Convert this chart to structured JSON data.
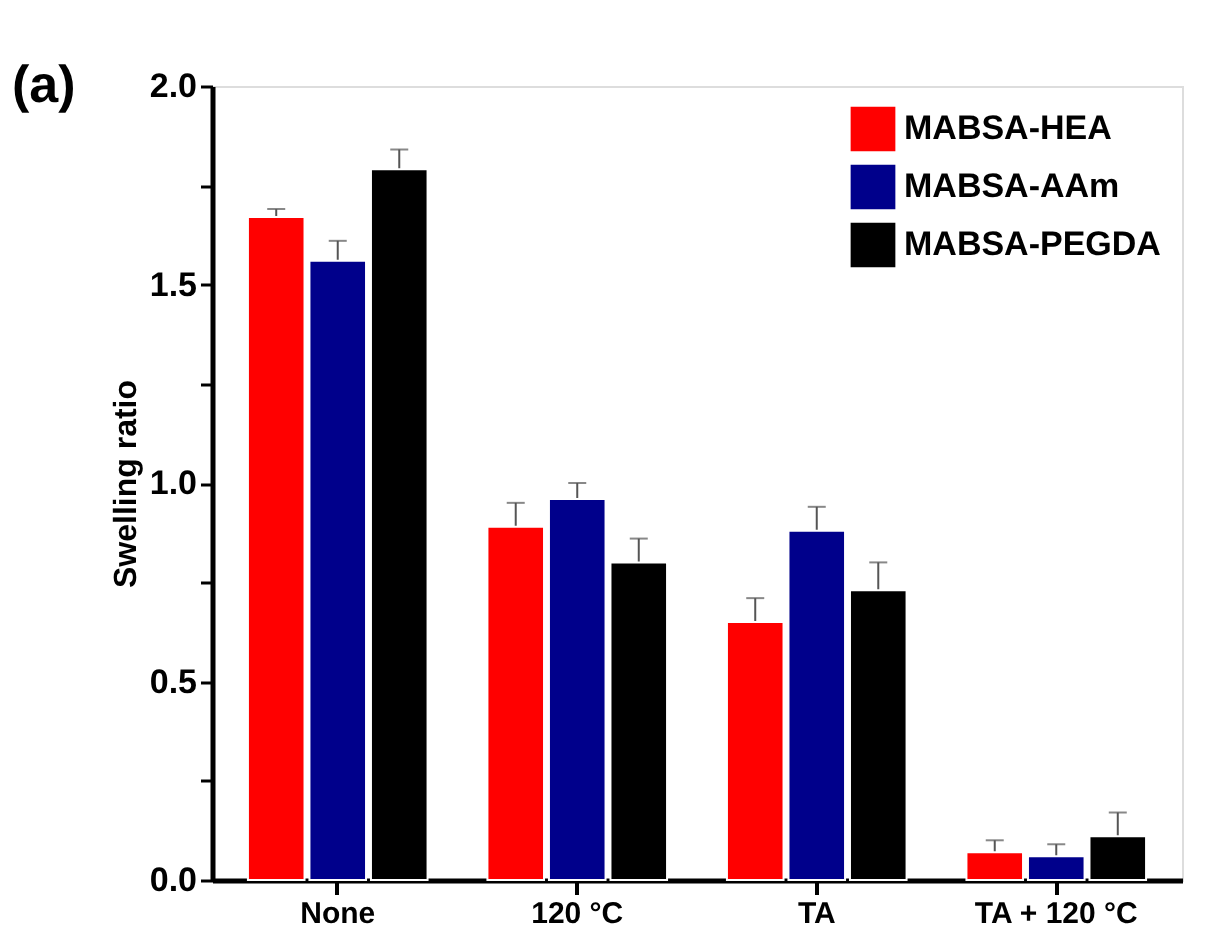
{
  "chart_data": {
    "type": "bar",
    "ylabel": "Swelling ratio",
    "annotations": [
      "(a)"
    ],
    "categories": [
      "None",
      "120 °C",
      "TA",
      "TA + 120 °C"
    ],
    "series": [
      {
        "name": "MABSA-HEA",
        "color": "#ff0000",
        "values": [
          1.67,
          0.89,
          0.65,
          0.07
        ],
        "errors": [
          0.02,
          0.06,
          0.06,
          0.03
        ]
      },
      {
        "name": "MABSA-AAm",
        "color": "#00008b",
        "values": [
          1.56,
          0.96,
          0.88,
          0.06
        ],
        "errors": [
          0.05,
          0.04,
          0.06,
          0.03
        ]
      },
      {
        "name": "MABSA-PEGDA",
        "color": "#000000",
        "values": [
          1.79,
          0.8,
          0.73,
          0.11
        ],
        "errors": [
          0.05,
          0.06,
          0.07,
          0.06
        ]
      }
    ],
    "ylim": [
      0,
      2.0
    ],
    "yticks": [
      {
        "value": 0,
        "label": "0.0"
      },
      {
        "value": 0.25,
        "label": null
      },
      {
        "value": 0.5,
        "label": "0.5"
      },
      {
        "value": 0.75,
        "label": null
      },
      {
        "value": 1.0,
        "label": "1.0"
      },
      {
        "value": 1.25,
        "label": null
      },
      {
        "value": 1.5,
        "label": "1.5"
      },
      {
        "value": 1.75,
        "label": null
      },
      {
        "value": 2.0,
        "label": "2.0"
      }
    ],
    "grid": false,
    "legend": "top right"
  }
}
